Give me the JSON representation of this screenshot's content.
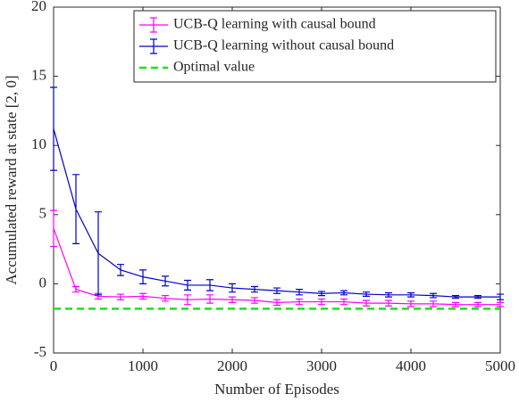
{
  "chart_data": {
    "type": "line",
    "x_label": "Number of Episodes",
    "y_label": "Accumulated reward at state [2, 0]",
    "x": [
      0,
      250,
      500,
      750,
      1000,
      1250,
      1500,
      1750,
      2000,
      2250,
      2500,
      2750,
      3000,
      3250,
      3500,
      3750,
      4000,
      4250,
      4500,
      4750,
      5000
    ],
    "series": [
      {
        "name": "UCB-Q learning with causal bound",
        "color": "#ff00ff",
        "values": [
          4,
          -0.4,
          -0.9,
          -0.95,
          -0.9,
          -1.05,
          -1.15,
          -1.1,
          -1.15,
          -1.2,
          -1.35,
          -1.3,
          -1.3,
          -1.3,
          -1.4,
          -1.4,
          -1.45,
          -1.45,
          -1.5,
          -1.5,
          -1.5
        ],
        "errors": [
          1.3,
          0.2,
          0.2,
          0.2,
          0.2,
          0.2,
          0.35,
          0.3,
          0.2,
          0.2,
          0.2,
          0.2,
          0.2,
          0.2,
          0.2,
          0.2,
          0.2,
          0.2,
          0.15,
          0.15,
          0.15
        ]
      },
      {
        "name": "UCB-Q learning without causal bound",
        "color": "#0000cc",
        "values": [
          11.2,
          5.4,
          2.2,
          1.0,
          0.5,
          0.2,
          -0.1,
          -0.1,
          -0.3,
          -0.4,
          -0.5,
          -0.6,
          -0.7,
          -0.65,
          -0.75,
          -0.8,
          -0.8,
          -0.85,
          -0.95,
          -0.95,
          -0.95
        ],
        "errors": [
          3,
          2.5,
          3,
          0.4,
          0.5,
          0.35,
          0.35,
          0.4,
          0.3,
          0.2,
          0.2,
          0.2,
          0.15,
          0.15,
          0.15,
          0.15,
          0.15,
          0.15,
          0.1,
          0.1,
          0.2
        ]
      }
    ],
    "reference_line": {
      "name": "Optimal value",
      "color": "#22dd22",
      "value": -1.8
    },
    "xlim": [
      0,
      5000
    ],
    "xticks": [
      0,
      1000,
      2000,
      3000,
      4000,
      5000
    ],
    "ylim": [
      -5,
      20
    ],
    "yticks": [
      -5,
      0,
      5,
      10,
      15,
      20
    ],
    "legend": "top-right"
  }
}
